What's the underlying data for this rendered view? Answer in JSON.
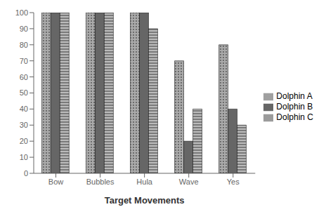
{
  "chart_data": {
    "type": "bar",
    "xlabel": "Target Movements",
    "categories": [
      "Bow",
      "Bubbles",
      "Hula",
      "Wave",
      "Yes"
    ],
    "series": [
      {
        "name": "Dolphin A",
        "color": "#aaaaaa",
        "values": [
          100,
          100,
          100,
          70,
          80
        ]
      },
      {
        "name": "Dolphin B",
        "color": "#666666",
        "values": [
          100,
          100,
          100,
          20,
          40
        ]
      },
      {
        "name": "Dolphin C",
        "color": "#bbbbbb",
        "values": [
          100,
          100,
          90,
          40,
          30
        ]
      }
    ],
    "ylim": [
      0,
      100
    ],
    "yticks": [
      0,
      10,
      20,
      30,
      40,
      50,
      60,
      70,
      80,
      90,
      100
    ],
    "grid": false,
    "legend": "right"
  }
}
